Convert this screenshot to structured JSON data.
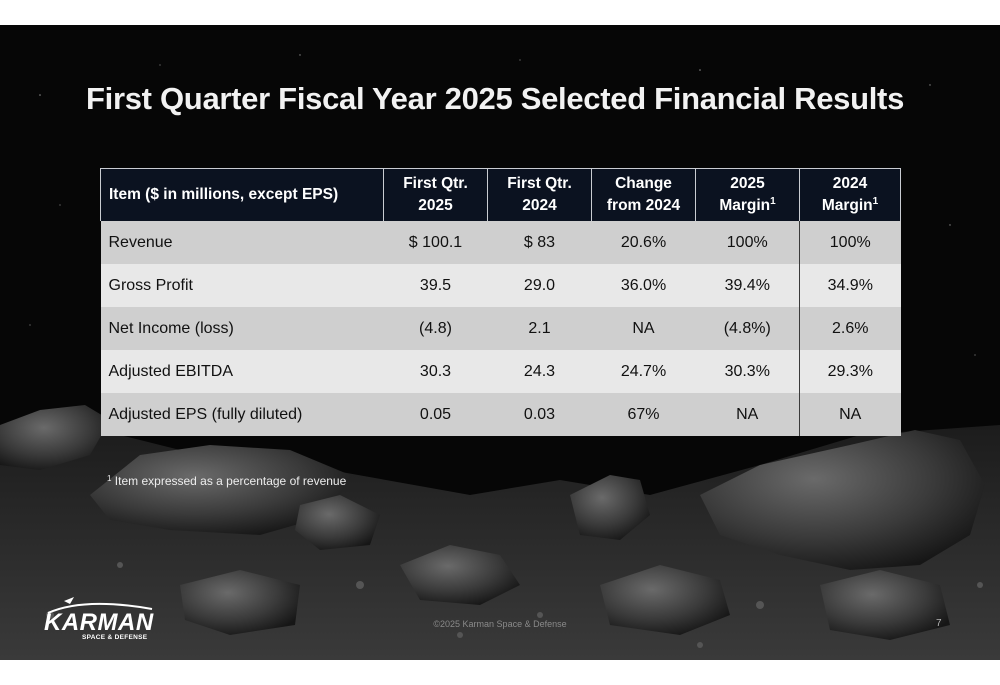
{
  "slide": {
    "title": "First Quarter Fiscal Year 2025 Selected Financial Results",
    "page_number": "7",
    "copyright": "©2025 Karman Space & Defense",
    "footnote_marker": "1",
    "footnote_text": "Item expressed as a percentage of revenue",
    "logo": {
      "name": "KARMAN",
      "tagline": "SPACE & DEFENSE"
    }
  },
  "table": {
    "headers": [
      {
        "text": "Item ($ in millions, except EPS)",
        "line2": "",
        "sup": ""
      },
      {
        "text": "First Qtr.",
        "line2": "2025",
        "sup": ""
      },
      {
        "text": "First Qtr.",
        "line2": "2024",
        "sup": ""
      },
      {
        "text": "Change",
        "line2": "from 2024",
        "sup": ""
      },
      {
        "text": "2025",
        "line2": "Margin",
        "sup": "1"
      },
      {
        "text": "2024",
        "line2": "Margin",
        "sup": "1"
      }
    ],
    "rows": [
      {
        "item": "Revenue",
        "q1_2025": "$ 100.1",
        "q1_2024": "$ 83",
        "change": "20.6%",
        "margin_2025": "100%",
        "margin_2024": "100%"
      },
      {
        "item": "Gross Profit",
        "q1_2025": "39.5",
        "q1_2024": "29.0",
        "change": "36.0%",
        "margin_2025": "39.4%",
        "margin_2024": "34.9%"
      },
      {
        "item": "Net Income (loss)",
        "q1_2025": "(4.8)",
        "q1_2024": "2.1",
        "change": "NA",
        "margin_2025": "(4.8%)",
        "margin_2024": "2.6%"
      },
      {
        "item": "Adjusted EBITDA",
        "q1_2025": "30.3",
        "q1_2024": "24.3",
        "change": "24.7%",
        "margin_2025": "30.3%",
        "margin_2024": "29.3%"
      },
      {
        "item": "Adjusted EPS (fully diluted)",
        "q1_2025": "0.05",
        "q1_2024": "0.03",
        "change": "67%",
        "margin_2025": "NA",
        "margin_2024": "NA"
      }
    ]
  },
  "colors": {
    "header_bg": "#0b1220",
    "row_odd": "#cfcfcf",
    "row_even": "#e8e8e8",
    "slide_bg": "#060606"
  }
}
